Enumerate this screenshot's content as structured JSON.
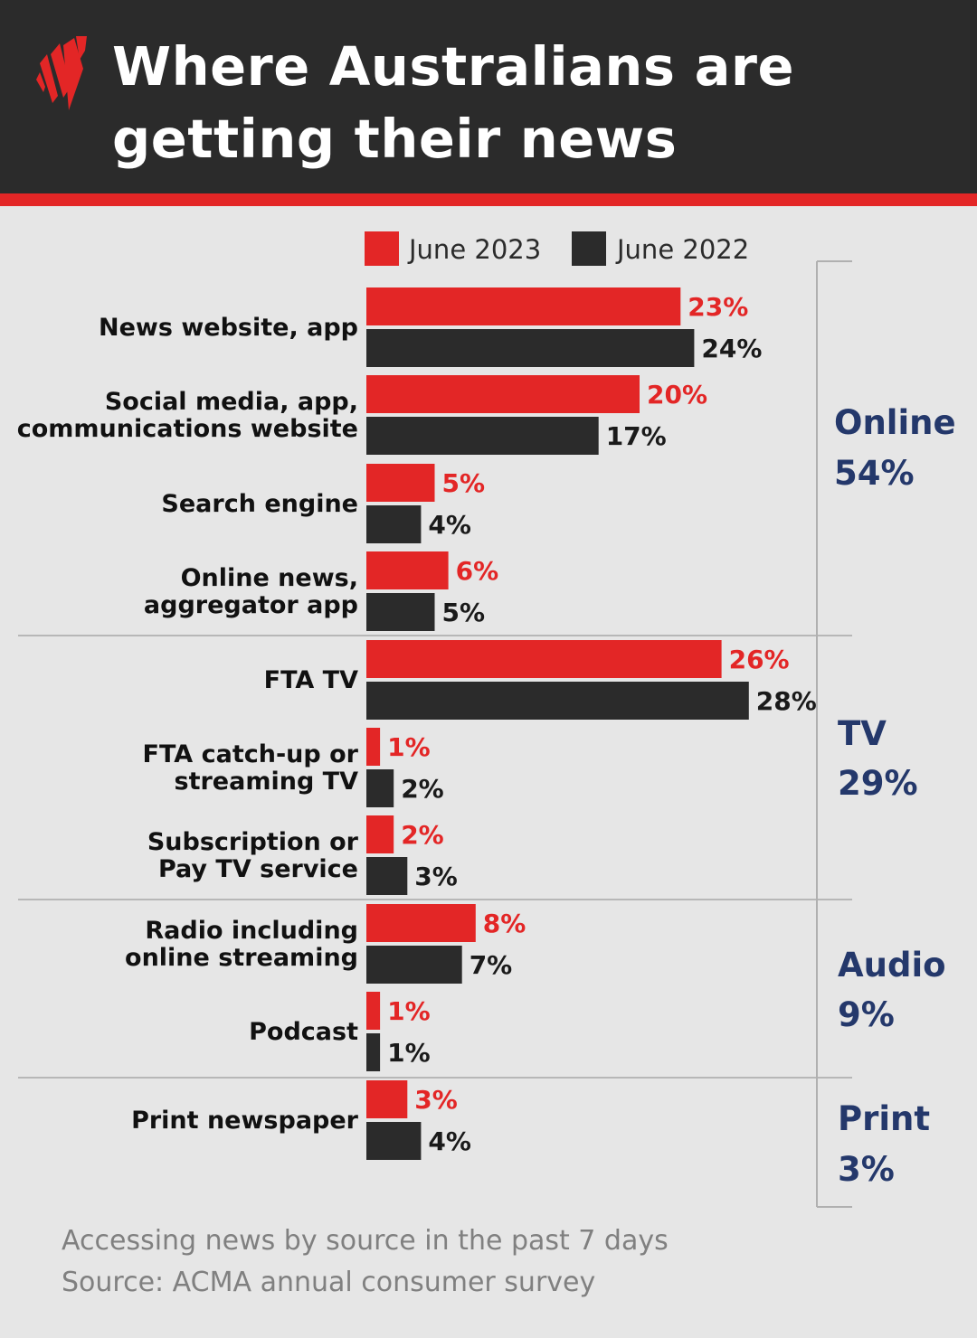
{
  "header": {
    "title_line1": "Where Australians are",
    "title_line2": "getting their news"
  },
  "colors": {
    "header_bg": "#2b2b2b",
    "accent_red": "#e32626",
    "bar_dark": "#2b2b2b",
    "group_label": "#24386b",
    "background": "#e6e6e6"
  },
  "chart_data": {
    "type": "bar",
    "orientation": "horizontal",
    "unit": "%",
    "legend": [
      "June 2023",
      "June 2022"
    ],
    "legend_position": "top",
    "xlim": [
      0,
      28
    ],
    "grid": false,
    "categories": [
      [
        "News website, app"
      ],
      [
        "Social media, app,",
        "communications website"
      ],
      [
        "Search engine"
      ],
      [
        "Online news,",
        "aggregator app"
      ],
      [
        "FTA TV"
      ],
      [
        "FTA catch-up or",
        "streaming TV"
      ],
      [
        "Subscription or",
        "Pay TV service"
      ],
      [
        "Radio including",
        "online streaming"
      ],
      [
        "Podcast"
      ],
      [
        "Print newspaper"
      ]
    ],
    "series": [
      {
        "name": "June 2023",
        "color": "#e32626",
        "values": [
          23,
          20,
          5,
          6,
          26,
          1,
          2,
          8,
          1,
          3
        ]
      },
      {
        "name": "June 2022",
        "color": "#2b2b2b",
        "values": [
          24,
          17,
          4,
          5,
          28,
          2,
          3,
          7,
          1,
          4
        ]
      }
    ],
    "groups": [
      {
        "name": "Online",
        "total": "54%",
        "start": 0,
        "end": 3
      },
      {
        "name": "TV",
        "total": "29%",
        "start": 4,
        "end": 6
      },
      {
        "name": "Audio",
        "total": "9%",
        "start": 7,
        "end": 8
      },
      {
        "name": "Print",
        "total": "3%",
        "start": 9,
        "end": 9
      }
    ]
  },
  "footer": {
    "note": "Accessing news by source in the past 7 days",
    "source": "Source: ACMA annual consumer survey"
  }
}
